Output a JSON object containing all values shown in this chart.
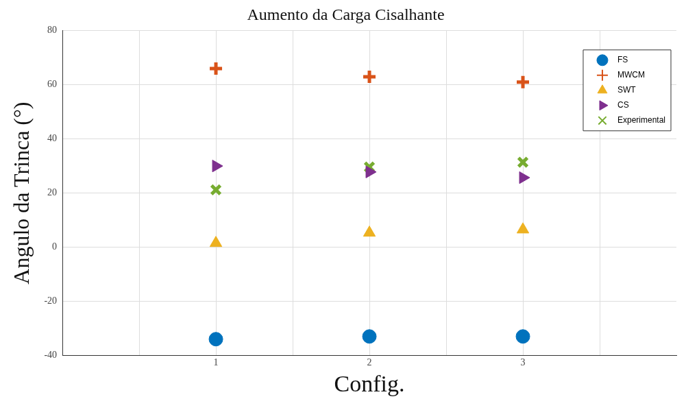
{
  "chart_data": {
    "type": "scatter",
    "title": "Aumento da Carga Cisalhante",
    "xlabel": "Config.",
    "ylabel": "Angulo da Trinca (°)",
    "xlim": [
      0,
      4
    ],
    "xticks": [
      {
        "value": 0.5,
        "label": null
      },
      1,
      {
        "value": 1.5,
        "label": null
      },
      2,
      {
        "value": 2.5,
        "label": null
      },
      3,
      {
        "value": 3.5,
        "label": null
      }
    ],
    "ylim": [
      -40,
      80
    ],
    "yticks": [
      -40,
      -20,
      0,
      20,
      40,
      60,
      80
    ],
    "grid": true,
    "legend": "top right",
    "x": [
      1,
      2,
      3
    ],
    "series": [
      {
        "name": "FS",
        "color": "#0072bd",
        "marker": "circle",
        "values": [
          -34,
          -33,
          -33
        ]
      },
      {
        "name": "MWCM",
        "color": "#d95319",
        "marker": "plus",
        "values": [
          66,
          63,
          61
        ]
      },
      {
        "name": "SWT",
        "color": "#edb120",
        "marker": "triangle",
        "values": [
          1.5,
          5.3,
          6.5
        ]
      },
      {
        "name": "CS",
        "color": "#7e2f8e",
        "marker": "triangle-right",
        "values": [
          30,
          27.8,
          25.7
        ]
      },
      {
        "name": "Experimental",
        "color": "#77ac30",
        "marker": "cross",
        "values": [
          21.2,
          29.6,
          31.4
        ]
      }
    ]
  }
}
